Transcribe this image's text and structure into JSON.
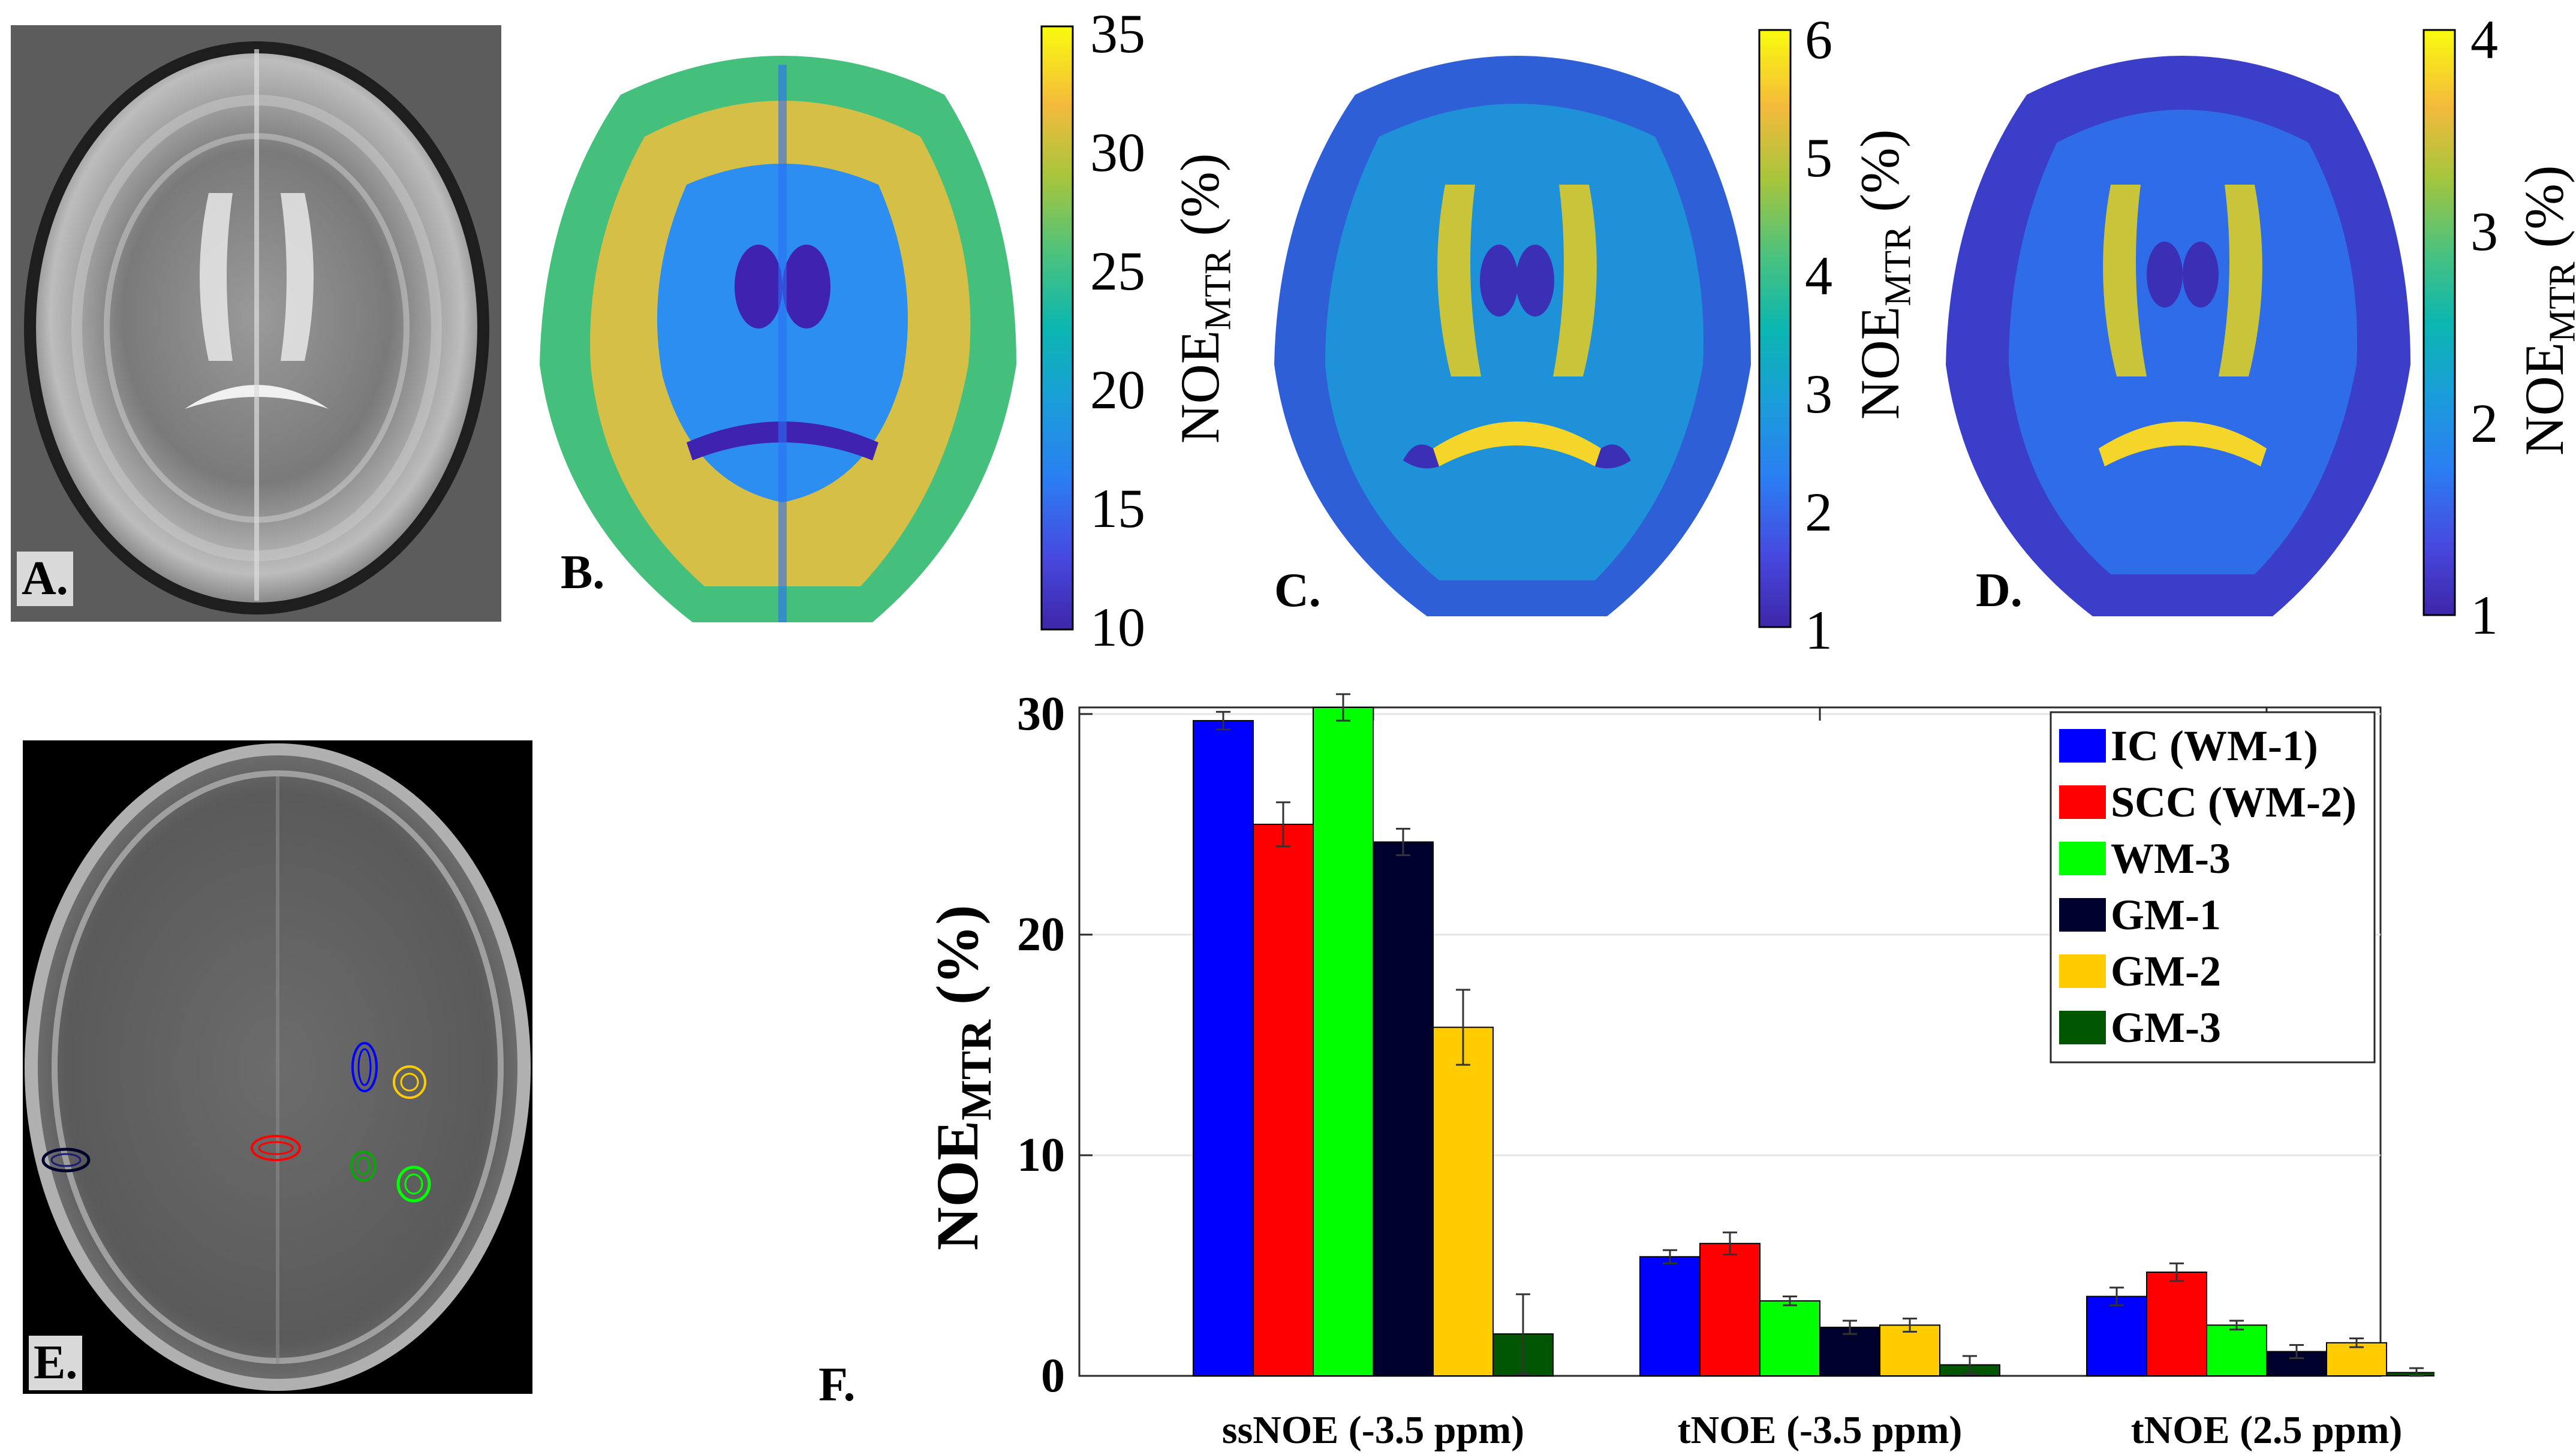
{
  "panels": {
    "a": {
      "label": "A."
    },
    "b": {
      "label": "B.",
      "colorbar": {
        "ticks": [
          "35",
          "30",
          "25",
          "20",
          "15",
          "10"
        ],
        "title": "NOE",
        "title_sub": "MTR",
        "title_unit": " (%)"
      }
    },
    "c": {
      "label": "C.",
      "colorbar": {
        "ticks": [
          "6",
          "5",
          "4",
          "3",
          "2",
          "1"
        ],
        "title": "NOE",
        "title_sub": "MTR",
        "title_unit": " (%)"
      }
    },
    "d": {
      "label": "D.",
      "colorbar": {
        "ticks": [
          "4",
          "3",
          "2",
          "1"
        ],
        "title": "NOE",
        "title_sub": "MTR",
        "title_unit": " (%)"
      }
    },
    "e": {
      "label": "E."
    },
    "f": {
      "label": "F."
    }
  },
  "colors": {
    "parula": [
      "#3e26a8",
      "#4749e0",
      "#2b7ef2",
      "#1a9ed9",
      "#0bb6b0",
      "#4ac27f",
      "#a7c53c",
      "#f4ba3c",
      "#fdd72e",
      "#f9fb0e"
    ],
    "ic": "#0000ff",
    "scc": "#ff0000",
    "wm3": "#00ff00",
    "gm1": "#00002d",
    "gm2": "#ffcc00",
    "gm3": "#005500"
  },
  "chart_data": {
    "type": "bar",
    "categories": [
      "ssNOE (-3.5 ppm)",
      "tNOE (-3.5 ppm)",
      "tNOE (2.5 ppm)"
    ],
    "ylabel": "NOE",
    "ylabel_sub": "MTR",
    "ylabel_unit": " (%)",
    "ylim": [
      0,
      30
    ],
    "yticks": [
      0,
      10,
      20,
      30
    ],
    "grid": true,
    "legend_position": "top-right",
    "series": [
      {
        "name": "IC (WM-1)",
        "color": "#0000ff",
        "values": [
          29.7,
          5.4,
          3.6
        ],
        "errors": [
          0.4,
          0.3,
          0.4
        ]
      },
      {
        "name": "SCC (WM-2)",
        "color": "#ff0000",
        "values": [
          25.0,
          6.0,
          4.7
        ],
        "errors": [
          1.0,
          0.5,
          0.4
        ]
      },
      {
        "name": "WM-3",
        "color": "#00ff00",
        "values": [
          30.3,
          3.4,
          2.3
        ],
        "errors": [
          0.6,
          0.2,
          0.2
        ]
      },
      {
        "name": "GM-1",
        "color": "#00002d",
        "values": [
          24.2,
          2.2,
          1.1
        ],
        "errors": [
          0.6,
          0.3,
          0.3
        ]
      },
      {
        "name": "GM-2",
        "color": "#ffcc00",
        "values": [
          15.8,
          2.3,
          1.5
        ],
        "errors": [
          1.7,
          0.3,
          0.2
        ]
      },
      {
        "name": "GM-3",
        "color": "#005500",
        "values": [
          1.9,
          0.5,
          0.15
        ],
        "errors": [
          1.8,
          0.4,
          0.2
        ]
      }
    ]
  }
}
